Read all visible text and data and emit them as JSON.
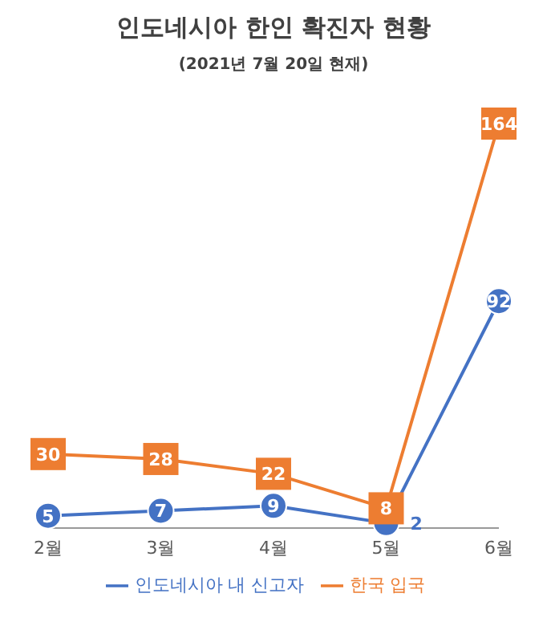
{
  "chart_data": {
    "type": "line",
    "title": "인도네시아 한인 확진자 현황",
    "subtitle": "(2021년 7월 20일 현재)",
    "categories": [
      "2월",
      "3월",
      "4월",
      "5월",
      "6월"
    ],
    "series": [
      {
        "name": "인도네시아 내 신고자",
        "color": "#4472c4",
        "values": [
          5,
          7,
          9,
          2,
          92
        ],
        "marker": "circle"
      },
      {
        "name": "한국 입국",
        "color": "#ed7d31",
        "values": [
          30,
          28,
          22,
          8,
          164
        ],
        "marker": "square"
      }
    ],
    "data_labels": true,
    "legend": "bottom"
  }
}
